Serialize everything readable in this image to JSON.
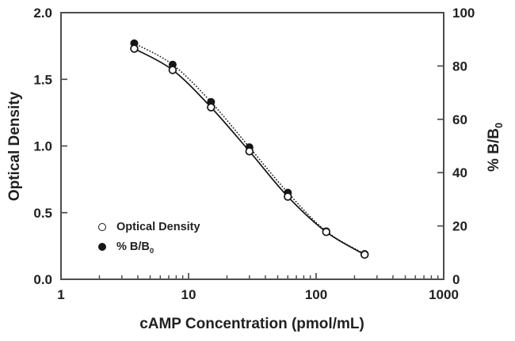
{
  "figure": {
    "x_title": "cAMP Concentration (pmol/mL)",
    "left_axis": {
      "title": "Optical Density",
      "tick_labels": [
        "0.0",
        "0.5",
        "1.0",
        "1.5",
        "2.0"
      ],
      "tick_values": [
        0,
        0.5,
        1.0,
        1.5,
        2.0
      ],
      "range": [
        0,
        2
      ]
    },
    "right_axis": {
      "title_main": "% B/B",
      "title_sub": "0",
      "tick_labels": [
        "0",
        "20",
        "40",
        "60",
        "80",
        "100"
      ],
      "tick_values": [
        0,
        20,
        40,
        60,
        80,
        100
      ],
      "range": [
        0,
        100
      ]
    },
    "x_axis": {
      "scale": "log",
      "range": [
        1,
        1000
      ],
      "decade_labels": [
        "1",
        "10",
        "100",
        "1000"
      ],
      "decade_values": [
        1,
        10,
        100,
        1000
      ]
    },
    "legend": {
      "items": [
        {
          "marker": "open-circle",
          "label": "Optical Density"
        },
        {
          "marker": "filled-circle",
          "label_main": "% B/B",
          "label_sub": "0"
        }
      ]
    },
    "colors": {
      "frame": "#4d4d4d",
      "text": "#231f20",
      "data": "#161616",
      "background": "#ffffff"
    }
  },
  "chart_data": {
    "type": "line",
    "x_scale": "log",
    "x": [
      3.75,
      7.5,
      15,
      30,
      60,
      120,
      240
    ],
    "series": [
      {
        "name": "Optical Density",
        "axis": "left",
        "values": [
          1.73,
          1.57,
          1.29,
          0.96,
          0.62,
          0.355,
          0.185
        ],
        "marker": "open-circle",
        "line": "solid"
      },
      {
        "name": "% B/B0",
        "axis": "right",
        "values": [
          88.5,
          80.5,
          66.5,
          49.5,
          32.5,
          18,
          9.5
        ],
        "marker": "filled-circle",
        "line": "dotted"
      }
    ],
    "title": "",
    "xlabel": "cAMP Concentration (pmol/mL)",
    "ylabel_left": "Optical Density",
    "ylabel_right": "% B/B0",
    "xlim": [
      1,
      1000
    ],
    "ylim_left": [
      0,
      2
    ],
    "ylim_right": [
      0,
      100
    ],
    "grid": false,
    "legend_position": "inside lower-left"
  }
}
